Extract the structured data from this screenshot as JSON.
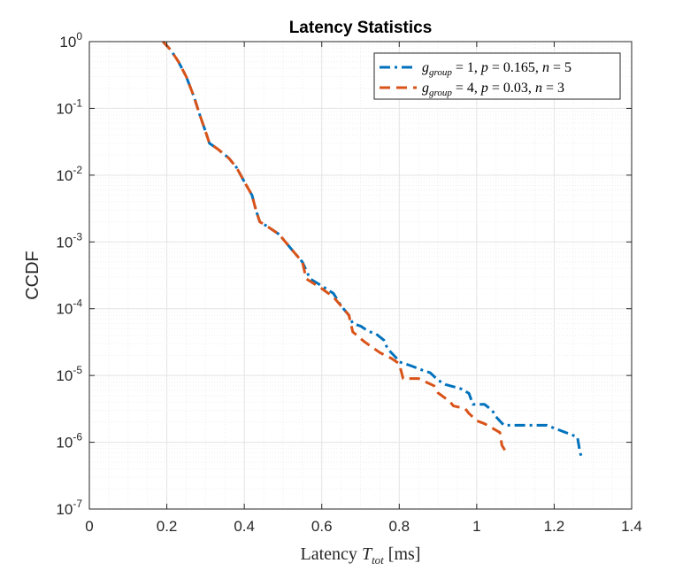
{
  "chart_data": {
    "type": "line",
    "title": "Latency Statistics",
    "xlabel": {
      "prefix": "Latency ",
      "var": "T",
      "sub": "tot",
      "suffix": " [ms]"
    },
    "ylabel": "CCDF",
    "xlim": [
      0,
      1.4
    ],
    "ylim": [
      1e-07,
      1
    ],
    "yscale": "log",
    "grid": true,
    "legend_position": "top-right",
    "x_ticks": [
      "0",
      "0.2",
      "0.4",
      "0.6",
      "0.8",
      "1",
      "1.2",
      "1.4"
    ],
    "y_ticks": [
      {
        "base": "10",
        "exp": "0"
      },
      {
        "base": "10",
        "exp": "-1"
      },
      {
        "base": "10",
        "exp": "-2"
      },
      {
        "base": "10",
        "exp": "-3"
      },
      {
        "base": "10",
        "exp": "-4"
      },
      {
        "base": "10",
        "exp": "-5"
      },
      {
        "base": "10",
        "exp": "-6"
      },
      {
        "base": "10",
        "exp": "-7"
      }
    ],
    "series": [
      {
        "name": "g_group = 1, p = 0.165, n = 5",
        "legend": {
          "g": "g",
          "sub": "group",
          "rest": " = 1, ",
          "p": "p",
          "pval": " = 0.165, ",
          "n": "n",
          "nval": " = 5"
        },
        "color": "#0072BD",
        "dash": "dashdot",
        "x": [
          0.19,
          0.21,
          0.23,
          0.25,
          0.27,
          0.285,
          0.3,
          0.31,
          0.33,
          0.36,
          0.38,
          0.4,
          0.42,
          0.43,
          0.44,
          0.46,
          0.49,
          0.52,
          0.55,
          0.57,
          0.6,
          0.63,
          0.65,
          0.67,
          0.68,
          0.7,
          0.72,
          0.74,
          0.76,
          0.77,
          0.79,
          0.8,
          0.83,
          0.86,
          0.88,
          0.9,
          0.92,
          0.94,
          0.96,
          0.98,
          0.99,
          1.02,
          1.04,
          1.05,
          1.07,
          1.18,
          1.26,
          1.265,
          1.27
        ],
        "y": [
          1.0,
          0.75,
          0.5,
          0.3,
          0.15,
          0.08,
          0.045,
          0.03,
          0.025,
          0.018,
          0.013,
          0.008,
          0.005,
          0.003,
          0.002,
          0.0017,
          0.0013,
          0.0008,
          0.0005,
          0.00028,
          0.00022,
          0.00017,
          0.00011,
          8e-05,
          6e-05,
          5.5e-05,
          4.6e-05,
          4.2e-05,
          3.4e-05,
          2.5e-05,
          1.9e-05,
          1.6e-05,
          1.4e-05,
          1.2e-05,
          1.1e-05,
          8.5e-06,
          7.3e-06,
          6.8e-06,
          6.3e-06,
          5.4e-06,
          3.7e-06,
          3.7e-06,
          3e-06,
          2.4e-06,
          1.8e-06,
          1.8e-06,
          1.2e-06,
          8e-07,
          6e-07
        ]
      },
      {
        "name": "g_group = 4, p = 0.03, n = 3",
        "legend": {
          "g": "g",
          "sub": "group",
          "rest": " = 4, ",
          "p": "p",
          "pval": " = 0.03, ",
          "n": "n",
          "nval": " = 3"
        },
        "color": "#D95319",
        "dash": "dashed",
        "x": [
          0.19,
          0.21,
          0.23,
          0.25,
          0.27,
          0.285,
          0.3,
          0.31,
          0.33,
          0.36,
          0.38,
          0.4,
          0.42,
          0.43,
          0.44,
          0.46,
          0.49,
          0.52,
          0.55,
          0.56,
          0.6,
          0.63,
          0.65,
          0.67,
          0.68,
          0.71,
          0.75,
          0.78,
          0.8,
          0.81,
          0.85,
          0.89,
          0.9,
          0.93,
          0.94,
          0.97,
          0.98,
          1.0,
          1.02,
          1.06,
          1.065,
          1.08
        ],
        "y": [
          1.0,
          0.75,
          0.5,
          0.3,
          0.15,
          0.08,
          0.045,
          0.03,
          0.025,
          0.018,
          0.013,
          0.008,
          0.005,
          0.003,
          0.002,
          0.0017,
          0.0013,
          0.0008,
          0.0005,
          0.00028,
          0.0002,
          0.00015,
          0.00011,
          8e-05,
          4.5e-05,
          3.2e-05,
          2.2e-05,
          1.8e-05,
          1.5e-05,
          9e-06,
          9e-06,
          7e-06,
          5.5e-06,
          4.1e-06,
          3.5e-06,
          3.2e-06,
          2.7e-06,
          2.1e-06,
          1.9e-06,
          1.4e-06,
          9e-07,
          6.5e-07
        ]
      }
    ]
  }
}
